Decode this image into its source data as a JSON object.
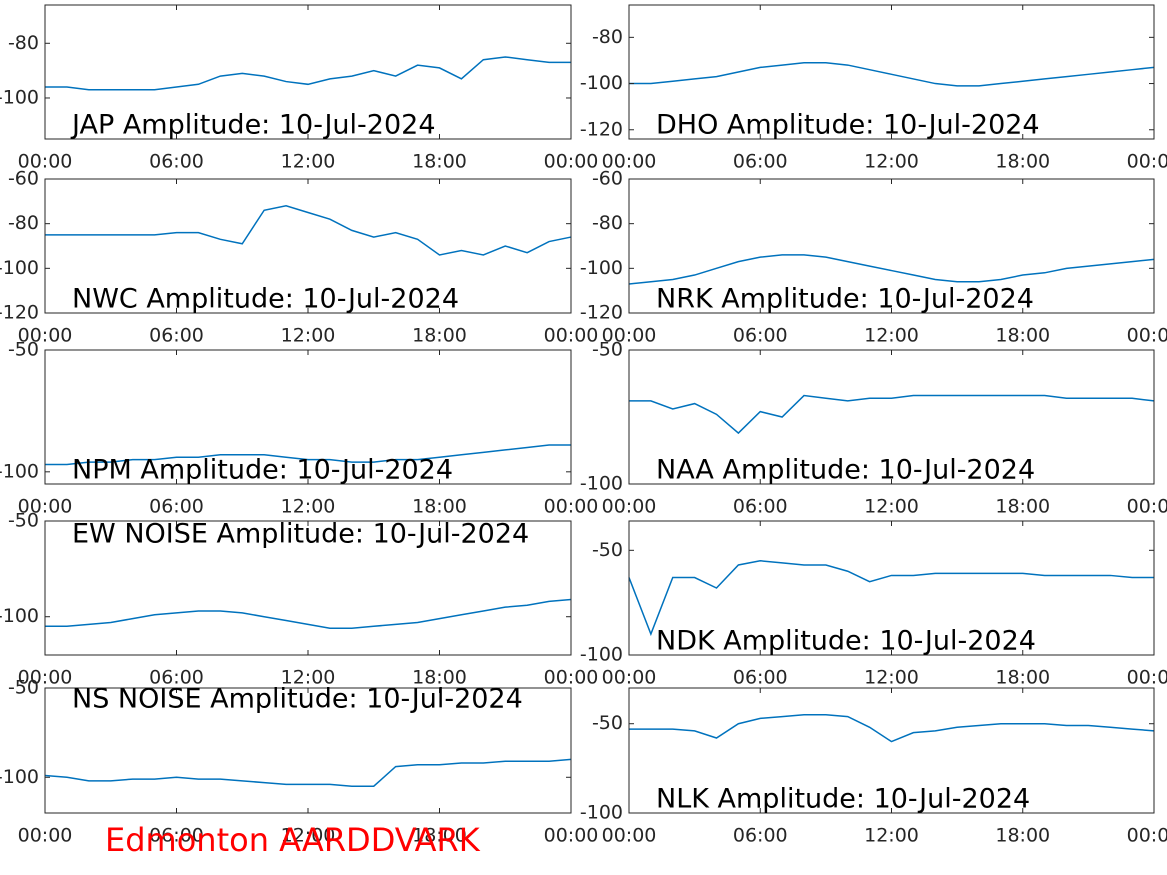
{
  "chart_data": [
    {
      "type": "line",
      "title": "JAP Amplitude: 10-Jul-2024",
      "color": "#0072bd",
      "x": [
        0,
        1,
        2,
        3,
        4,
        5,
        6,
        7,
        8,
        9,
        10,
        11,
        12,
        13,
        14,
        15,
        16,
        17,
        18,
        19,
        20,
        21,
        22,
        23,
        24
      ],
      "values": [
        -96,
        -96,
        -97,
        -97,
        -97,
        -97,
        -96,
        -95,
        -92,
        -91,
        -92,
        -94,
        -95,
        -93,
        -92,
        -90,
        -92,
        -88,
        -89,
        -93,
        -86,
        -85,
        -86,
        -87,
        -87
      ],
      "xlim": [
        0,
        24
      ],
      "xticks": [
        {
          "value": 0,
          "label": "00:00"
        },
        {
          "value": 6,
          "label": "06:00"
        },
        {
          "value": 12,
          "label": "12:00"
        },
        {
          "value": 18,
          "label": "18:00"
        },
        {
          "value": 24,
          "label": "00:00"
        }
      ],
      "ylim": [
        -115,
        -66
      ],
      "yticks": [
        -100,
        -80
      ]
    },
    {
      "type": "line",
      "title": "DHO Amplitude: 10-Jul-2024",
      "color": "#0072bd",
      "x": [
        0,
        1,
        2,
        3,
        4,
        5,
        6,
        7,
        8,
        9,
        10,
        11,
        12,
        13,
        14,
        15,
        16,
        17,
        18,
        19,
        20,
        21,
        22,
        23,
        24
      ],
      "values": [
        -100,
        -100,
        -99,
        -98,
        -97,
        -95,
        -93,
        -92,
        -91,
        -91,
        -92,
        -94,
        -96,
        -98,
        -100,
        -101,
        -101,
        -100,
        -99,
        -98,
        -97,
        -96,
        -95,
        -94,
        -93
      ],
      "xlim": [
        0,
        24
      ],
      "xticks": [
        {
          "value": 0,
          "label": "00:00"
        },
        {
          "value": 6,
          "label": "06:00"
        },
        {
          "value": 12,
          "label": "12:00"
        },
        {
          "value": 18,
          "label": "18:00"
        },
        {
          "value": 24,
          "label": "00:00"
        }
      ],
      "ylim": [
        -124,
        -66
      ],
      "yticks": [
        -120,
        -100,
        -80
      ]
    },
    {
      "type": "line",
      "title": "NWC Amplitude: 10-Jul-2024",
      "color": "#0072bd",
      "x": [
        0,
        1,
        2,
        3,
        4,
        5,
        6,
        7,
        8,
        9,
        10,
        11,
        12,
        13,
        14,
        15,
        16,
        17,
        18,
        19,
        20,
        21,
        22,
        23,
        24
      ],
      "values": [
        -85,
        -85,
        -85,
        -85,
        -85,
        -85,
        -84,
        -84,
        -87,
        -89,
        -74,
        -72,
        -75,
        -78,
        -83,
        -86,
        -84,
        -87,
        -94,
        -92,
        -94,
        -90,
        -93,
        -88,
        -86
      ],
      "xlim": [
        0,
        24
      ],
      "xticks": [
        {
          "value": 0,
          "label": "00:00"
        },
        {
          "value": 6,
          "label": "06:00"
        },
        {
          "value": 12,
          "label": "12:00"
        },
        {
          "value": 18,
          "label": "18:00"
        },
        {
          "value": 24,
          "label": "00:00"
        }
      ],
      "ylim": [
        -120,
        -60
      ],
      "yticks": [
        -120,
        -100,
        -80,
        -60
      ]
    },
    {
      "type": "line",
      "title": "NRK Amplitude: 10-Jul-2024",
      "color": "#0072bd",
      "x": [
        0,
        1,
        2,
        3,
        4,
        5,
        6,
        7,
        8,
        9,
        10,
        11,
        12,
        13,
        14,
        15,
        16,
        17,
        18,
        19,
        20,
        21,
        22,
        23,
        24
      ],
      "values": [
        -107,
        -106,
        -105,
        -103,
        -100,
        -97,
        -95,
        -94,
        -94,
        -95,
        -97,
        -99,
        -101,
        -103,
        -105,
        -106,
        -106,
        -105,
        -103,
        -102,
        -100,
        -99,
        -98,
        -97,
        -96
      ],
      "xlim": [
        0,
        24
      ],
      "xticks": [
        {
          "value": 0,
          "label": "00:00"
        },
        {
          "value": 6,
          "label": "06:00"
        },
        {
          "value": 12,
          "label": "12:00"
        },
        {
          "value": 18,
          "label": "18:00"
        },
        {
          "value": 24,
          "label": "00:00"
        }
      ],
      "ylim": [
        -120,
        -60
      ],
      "yticks": [
        -120,
        -100,
        -80,
        -60
      ]
    },
    {
      "type": "line",
      "title": "NPM Amplitude: 10-Jul-2024",
      "color": "#0072bd",
      "x": [
        0,
        1,
        2,
        3,
        4,
        5,
        6,
        7,
        8,
        9,
        10,
        11,
        12,
        13,
        14,
        15,
        16,
        17,
        18,
        19,
        20,
        21,
        22,
        23,
        24
      ],
      "values": [
        -97,
        -97,
        -96,
        -96,
        -95,
        -95,
        -94,
        -94,
        -93,
        -93,
        -93,
        -94,
        -95,
        -95,
        -96,
        -96,
        -95,
        -95,
        -94,
        -93,
        -92,
        -91,
        -90,
        -89,
        -89
      ],
      "xlim": [
        0,
        24
      ],
      "xticks": [
        {
          "value": 0,
          "label": "00:00"
        },
        {
          "value": 6,
          "label": "06:00"
        },
        {
          "value": 12,
          "label": "12:00"
        },
        {
          "value": 18,
          "label": "18:00"
        },
        {
          "value": 24,
          "label": "00:00"
        }
      ],
      "ylim": [
        -105,
        -50
      ],
      "yticks": [
        -100,
        -50
      ]
    },
    {
      "type": "line",
      "title": "NAA Amplitude: 10-Jul-2024",
      "color": "#0072bd",
      "x": [
        0,
        1,
        2,
        3,
        4,
        5,
        6,
        7,
        8,
        9,
        10,
        11,
        12,
        13,
        14,
        15,
        16,
        17,
        18,
        19,
        20,
        21,
        22,
        23,
        24
      ],
      "values": [
        -69,
        -69,
        -72,
        -70,
        -74,
        -81,
        -73,
        -75,
        -67,
        -68,
        -69,
        -68,
        -68,
        -67,
        -67,
        -67,
        -67,
        -67,
        -67,
        -67,
        -68,
        -68,
        -68,
        -68,
        -69
      ],
      "xlim": [
        0,
        24
      ],
      "xticks": [
        {
          "value": 0,
          "label": "00:00"
        },
        {
          "value": 6,
          "label": "06:00"
        },
        {
          "value": 12,
          "label": "12:00"
        },
        {
          "value": 18,
          "label": "18:00"
        },
        {
          "value": 24,
          "label": "00:00"
        }
      ],
      "ylim": [
        -100,
        -50
      ],
      "yticks": [
        -100,
        -50
      ]
    },
    {
      "type": "line",
      "title": "EW NOISE Amplitude: 10-Jul-2024",
      "color": "#0072bd",
      "x": [
        0,
        1,
        2,
        3,
        4,
        5,
        6,
        7,
        8,
        9,
        10,
        11,
        12,
        13,
        14,
        15,
        16,
        17,
        18,
        19,
        20,
        21,
        22,
        23,
        24
      ],
      "values": [
        -105,
        -105,
        -104,
        -103,
        -101,
        -99,
        -98,
        -97,
        -97,
        -98,
        -100,
        -102,
        -104,
        -106,
        -106,
        -105,
        -104,
        -103,
        -101,
        -99,
        -97,
        -95,
        -94,
        -92,
        -91
      ],
      "xlim": [
        0,
        24
      ],
      "xticks": [
        {
          "value": 0,
          "label": "00:00"
        },
        {
          "value": 6,
          "label": "06:00"
        },
        {
          "value": 12,
          "label": "12:00"
        },
        {
          "value": 18,
          "label": "18:00"
        },
        {
          "value": 24,
          "label": "00:00"
        }
      ],
      "ylim": [
        -120,
        -50
      ],
      "yticks": [
        -100,
        -50
      ]
    },
    {
      "type": "line",
      "title": "NDK Amplitude: 10-Jul-2024",
      "color": "#0072bd",
      "x": [
        0,
        1,
        2,
        3,
        4,
        5,
        6,
        7,
        8,
        9,
        10,
        11,
        12,
        13,
        14,
        15,
        16,
        17,
        18,
        19,
        20,
        21,
        22,
        23,
        24
      ],
      "values": [
        -63,
        -90,
        -63,
        -63,
        -68,
        -57,
        -55,
        -56,
        -57,
        -57,
        -60,
        -65,
        -62,
        -62,
        -61,
        -61,
        -61,
        -61,
        -61,
        -62,
        -62,
        -62,
        -62,
        -63,
        -63
      ],
      "xlim": [
        0,
        24
      ],
      "xticks": [
        {
          "value": 0,
          "label": "00:00"
        },
        {
          "value": 6,
          "label": "06:00"
        },
        {
          "value": 12,
          "label": "12:00"
        },
        {
          "value": 18,
          "label": "18:00"
        },
        {
          "value": 24,
          "label": "00:00"
        }
      ],
      "ylim": [
        -100,
        -36
      ],
      "yticks": [
        -100,
        -50
      ]
    },
    {
      "type": "line",
      "title": "NS NOISE Amplitude: 10-Jul-2024",
      "color": "#0072bd",
      "x": [
        0,
        1,
        2,
        3,
        4,
        5,
        6,
        7,
        8,
        9,
        10,
        11,
        12,
        13,
        14,
        15,
        16,
        17,
        18,
        19,
        20,
        21,
        22,
        23,
        24
      ],
      "values": [
        -99,
        -100,
        -102,
        -102,
        -101,
        -101,
        -100,
        -101,
        -101,
        -102,
        -103,
        -104,
        -104,
        -104,
        -105,
        -105,
        -94,
        -93,
        -93,
        -92,
        -92,
        -91,
        -91,
        -91,
        -90
      ],
      "xlim": [
        0,
        24
      ],
      "xticks": [
        {
          "value": 0,
          "label": "00:00"
        },
        {
          "value": 6,
          "label": "06:00"
        },
        {
          "value": 12,
          "label": "12:00"
        },
        {
          "value": 18,
          "label": "18:00"
        },
        {
          "value": 24,
          "label": "00:00"
        }
      ],
      "ylim": [
        -120,
        -50
      ],
      "yticks": [
        -100,
        -50
      ]
    },
    {
      "type": "line",
      "title": "NLK Amplitude: 10-Jul-2024",
      "color": "#0072bd",
      "x": [
        0,
        1,
        2,
        3,
        4,
        5,
        6,
        7,
        8,
        9,
        10,
        11,
        12,
        13,
        14,
        15,
        16,
        17,
        18,
        19,
        20,
        21,
        22,
        23,
        24
      ],
      "values": [
        -53,
        -53,
        -53,
        -54,
        -58,
        -50,
        -47,
        -46,
        -45,
        -45,
        -46,
        -52,
        -60,
        -55,
        -54,
        -52,
        -51,
        -50,
        -50,
        -50,
        -51,
        -51,
        -52,
        -53,
        -54
      ],
      "xlim": [
        0,
        24
      ],
      "xticks": [
        {
          "value": 0,
          "label": "00:00"
        },
        {
          "value": 6,
          "label": "06:00"
        },
        {
          "value": 12,
          "label": "12:00"
        },
        {
          "value": 18,
          "label": "18:00"
        },
        {
          "value": 24,
          "label": "00:00"
        }
      ],
      "ylim": [
        -100,
        -30
      ],
      "yticks": [
        -100,
        -50
      ]
    }
  ],
  "footer": "Edmonton AARDDVARK"
}
